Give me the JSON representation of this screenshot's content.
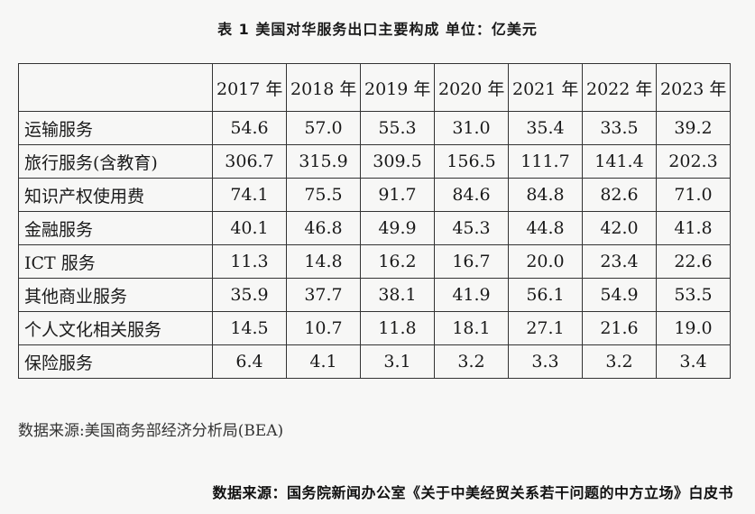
{
  "title": "表 1 美国对华服务出口主要构成 单位：亿美元",
  "table": {
    "header_blank": "",
    "years": [
      "2017 年",
      "2018 年",
      "2019 年",
      "2020 年",
      "2021 年",
      "2022 年",
      "2023 年"
    ],
    "rows": [
      {
        "label": "运输服务",
        "values": [
          "54.6",
          "57.0",
          "55.3",
          "31.0",
          "35.4",
          "33.5",
          "39.2"
        ]
      },
      {
        "label": "旅行服务(含教育)",
        "values": [
          "306.7",
          "315.9",
          "309.5",
          "156.5",
          "111.7",
          "141.4",
          "202.3"
        ]
      },
      {
        "label": "知识产权使用费",
        "values": [
          "74.1",
          "75.5",
          "91.7",
          "84.6",
          "84.8",
          "82.6",
          "71.0"
        ]
      },
      {
        "label": "金融服务",
        "values": [
          "40.1",
          "46.8",
          "49.9",
          "45.3",
          "44.8",
          "42.0",
          "41.8"
        ]
      },
      {
        "label": "ICT 服务",
        "values": [
          "11.3",
          "14.8",
          "16.2",
          "16.7",
          "20.0",
          "23.4",
          "22.6"
        ]
      },
      {
        "label": "其他商业服务",
        "values": [
          "35.9",
          "37.7",
          "38.1",
          "41.9",
          "56.1",
          "54.9",
          "53.5"
        ]
      },
      {
        "label": "个人文化相关服务",
        "values": [
          "14.5",
          "10.7",
          "11.8",
          "18.1",
          "27.1",
          "21.6",
          "19.0"
        ]
      },
      {
        "label": "保险服务",
        "values": [
          "6.4",
          "4.1",
          "3.1",
          "3.2",
          "3.3",
          "3.2",
          "3.4"
        ]
      }
    ]
  },
  "source_note": "数据来源:美国商务部经济分析局(BEA)",
  "source_footer": "数据来源：国务院新闻办公室《关于中美经贸关系若干问题的中方立场》白皮书"
}
